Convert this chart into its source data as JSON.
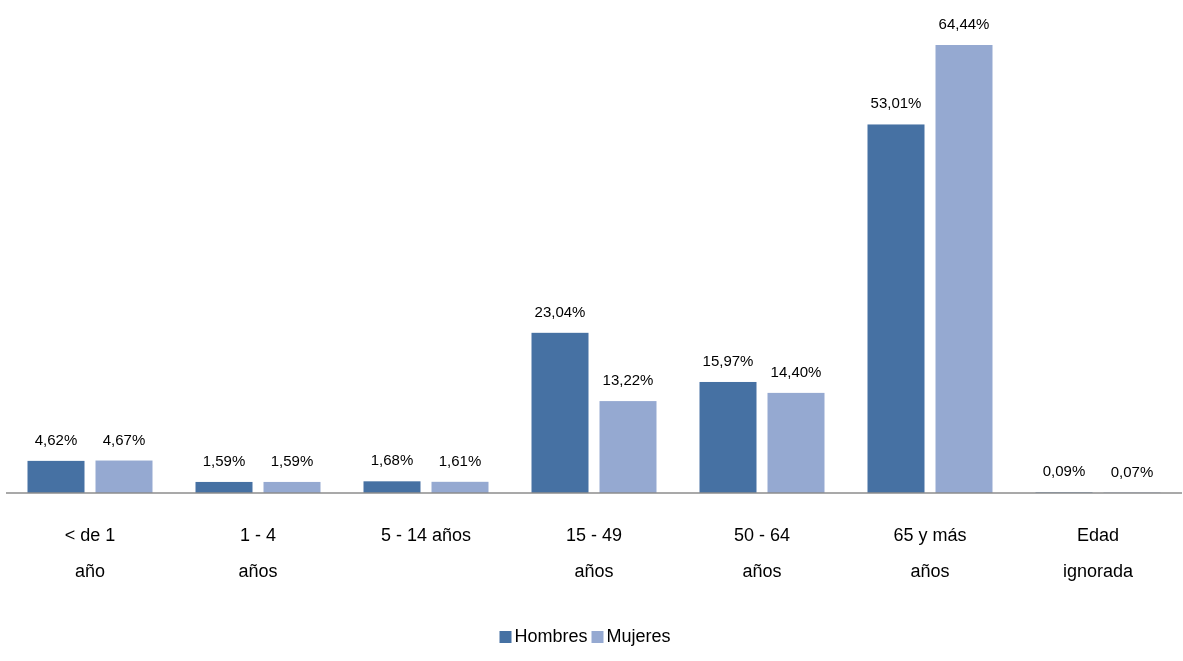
{
  "chart_data": {
    "type": "bar",
    "categories": [
      "< de 1\naño",
      "1 - 4\naños",
      "5 - 14 años",
      "15 - 49\naños",
      "50 - 64\naños",
      "65 y más\naños",
      "Edad\nignorada"
    ],
    "series": [
      {
        "name": "Hombres",
        "color": "#4671a3",
        "values": [
          4.62,
          1.59,
          1.68,
          23.04,
          15.97,
          53.01,
          0.09
        ],
        "value_labels": [
          "4,62%",
          "1,59%",
          "1,68%",
          "23,04%",
          "15,97%",
          "53,01%",
          "0,09%"
        ]
      },
      {
        "name": "Mujeres",
        "color": "#95a9d1",
        "values": [
          4.67,
          1.59,
          1.61,
          13.22,
          14.4,
          64.44,
          0.07
        ],
        "value_labels": [
          "4,67%",
          "1,59%",
          "1,61%",
          "13,22%",
          "14,40%",
          "64,44%",
          "0,07%"
        ]
      }
    ],
    "legend": "bottom"
  }
}
